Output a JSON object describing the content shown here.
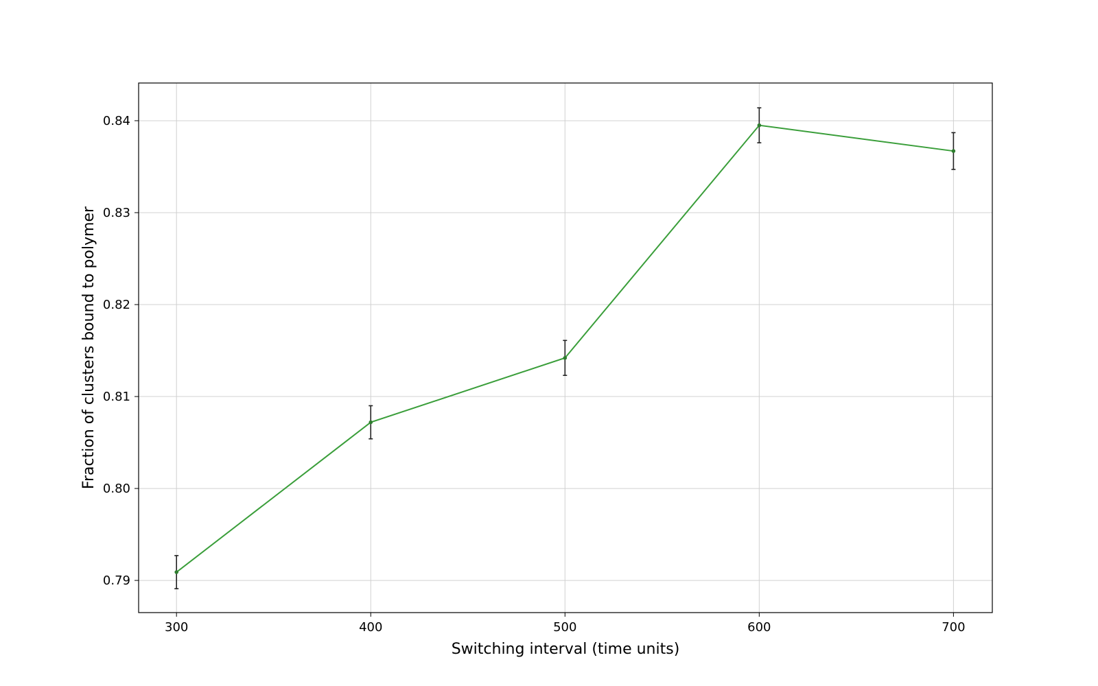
{
  "chart_data": {
    "type": "line",
    "title": "",
    "xlabel": "Switching interval (time units)",
    "ylabel": "Fraction of clusters bound to polymer",
    "x": [
      300,
      400,
      500,
      600,
      700
    ],
    "series": [
      {
        "values": [
          0.7909,
          0.8072,
          0.8142,
          0.8395,
          0.8367
        ],
        "errors": [
          0.0018,
          0.0018,
          0.0019,
          0.0019,
          0.002
        ],
        "color": "#3a9e3a",
        "marker_color": "#2e7d2e",
        "error_color": "#222222"
      }
    ],
    "xlim": [
      280.5,
      720
    ],
    "ylim": [
      0.7865,
      0.8441
    ],
    "xticks": [
      300,
      400,
      500,
      600,
      700
    ],
    "yticks": [
      0.79,
      0.8,
      0.81,
      0.82,
      0.83,
      0.84
    ],
    "xtick_labels": [
      "300",
      "400",
      "500",
      "600",
      "700"
    ],
    "ytick_labels": [
      "0.79",
      "0.80",
      "0.81",
      "0.82",
      "0.83",
      "0.84"
    ],
    "grid": true,
    "legend": "none"
  }
}
